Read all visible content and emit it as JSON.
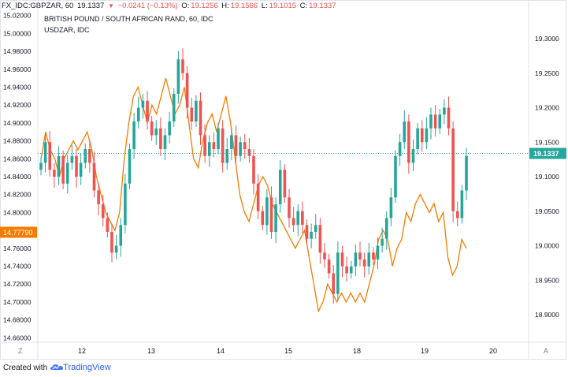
{
  "header": {
    "symbol": "FX_IDC:GBPZAR, 60",
    "price": "19.1337",
    "change": "−0.0241 (−0.13%)",
    "open_label": "O:",
    "open": "19.1256",
    "high_label": "H:",
    "high": "19.1566",
    "low_label": "L:",
    "low": "19.1015",
    "close_label": "C:",
    "close": "19.1337"
  },
  "legend": {
    "main_series": "BRITISH POUND / SOUTH AFRICAN RAND, 60, IDC",
    "compare_series": "USDZAR, IDC"
  },
  "left_axis": {
    "ticks": [
      "15.02000",
      "15.00000",
      "14.98000",
      "14.96000",
      "14.94000",
      "14.92000",
      "14.90000",
      "14.88000",
      "14.86000",
      "14.84000",
      "14.82000",
      "14.80000",
      "14.78000",
      "14.76000",
      "14.74000",
      "14.72000",
      "14.70000",
      "14.68000",
      "14.66000"
    ],
    "current_label": "14.77790"
  },
  "right_axis": {
    "ticks": [
      "19.3000",
      "19.2500",
      "19.2000",
      "19.1500",
      "19.1000",
      "19.0500",
      "19.0000",
      "18.9500",
      "18.9000"
    ],
    "current_label": "19.1337"
  },
  "time_axis": {
    "ticks": [
      "12",
      "13",
      "14",
      "15",
      "18",
      "19",
      "20"
    ],
    "left_button": "Z",
    "right_button": "A"
  },
  "colors": {
    "up": "#26a69a",
    "down": "#ef5350",
    "compare_line": "#f57c00",
    "price_line": "#26a69a",
    "left_label_bg": "#f57c00",
    "right_label_bg": "#26a69a"
  },
  "footer": {
    "created_with": "Created with",
    "brand": "TradingView"
  },
  "chart_data": {
    "type": "candlestick",
    "description_series": [
      {
        "name": "BRITISH POUND / SOUTH AFRICAN RAND, 60, IDC",
        "axis": "right"
      },
      {
        "name": "USDZAR, IDC",
        "axis": "left"
      }
    ],
    "right_ylim": [
      18.86,
      19.34
    ],
    "left_ylim": [
      14.655,
      15.025
    ],
    "gbpzar_close_path": [
      19.12,
      19.15,
      19.11,
      19.1,
      19.13,
      19.09,
      19.12,
      19.13,
      19.1,
      19.12,
      19.14,
      19.12,
      19.08,
      19.06,
      19.04,
      19.02,
      18.99,
      19.0,
      19.03,
      19.09,
      19.14,
      19.18,
      19.2,
      19.21,
      19.18,
      19.16,
      19.17,
      19.14,
      19.16,
      19.18,
      19.22,
      19.27,
      19.25,
      19.2,
      19.18,
      19.21,
      19.16,
      19.13,
      19.15,
      19.14,
      19.17,
      19.12,
      19.14,
      19.16,
      19.13,
      19.15,
      19.14,
      19.13,
      19.09,
      19.05,
      19.03,
      19.07,
      19.02,
      19.06,
      19.11,
      19.07,
      19.04,
      19.03,
      19.05,
      19.03,
      19.01,
      19.02,
      19.03,
      18.99,
      18.98,
      18.96,
      18.93,
      18.99,
      18.97,
      18.96,
      18.97,
      18.99,
      18.98,
      18.97,
      18.99,
      18.98,
      19.0,
      19.01,
      19.04,
      19.07,
      19.13,
      19.15,
      19.18,
      19.12,
      19.14,
      19.17,
      19.15,
      19.17,
      19.19,
      19.17,
      19.19,
      19.2,
      19.17,
      19.05,
      19.04,
      19.08,
      19.13
    ],
    "usdzar_line_path": [
      14.86,
      14.89,
      14.87,
      14.86,
      14.84,
      14.86,
      14.87,
      14.88,
      14.87,
      14.88,
      14.89,
      14.87,
      14.84,
      14.82,
      14.8,
      14.79,
      14.78,
      14.8,
      14.86,
      14.9,
      14.93,
      14.94,
      14.92,
      14.9,
      14.92,
      14.91,
      14.93,
      14.95,
      14.93,
      14.91,
      14.92,
      14.94,
      14.9,
      14.86,
      14.85,
      14.88,
      14.9,
      14.91,
      14.89,
      14.91,
      14.93,
      14.9,
      14.86,
      14.82,
      14.8,
      14.79,
      14.81,
      14.83,
      14.84,
      14.83,
      14.81,
      14.8,
      14.79,
      14.78,
      14.77,
      14.76,
      14.77,
      14.78,
      14.75,
      14.72,
      14.69,
      14.7,
      14.72,
      14.71,
      14.7,
      14.71,
      14.7,
      14.71,
      14.7,
      14.71,
      14.7,
      14.72,
      14.74,
      14.77,
      14.78,
      14.77,
      14.74,
      14.76,
      14.77,
      14.8,
      14.79,
      14.81,
      14.82,
      14.81,
      14.8,
      14.81,
      14.79,
      14.8,
      14.75,
      14.73,
      14.74,
      14.77,
      14.76
    ],
    "last_value_right": 19.1337,
    "last_value_left": 14.7779,
    "x_ticks": [
      "12",
      "13",
      "14",
      "15",
      "18",
      "19",
      "20"
    ]
  }
}
